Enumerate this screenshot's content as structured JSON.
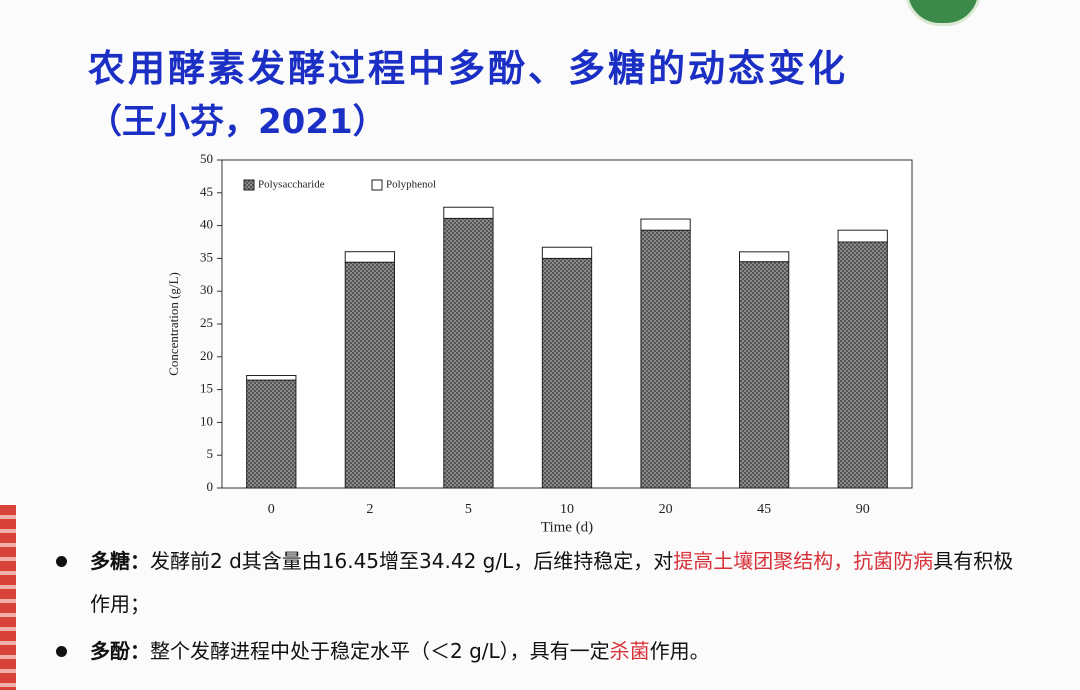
{
  "title": "农用酵素发酵过程中多酚、多糖的动态变化",
  "subtitle": "（王小芬，2021）",
  "chart_data": {
    "type": "stacked_bar",
    "x_label": "Time (d)",
    "y_label": "Concentration (g/L)",
    "categories": [
      "0",
      "2",
      "5",
      "10",
      "20",
      "45",
      "90"
    ],
    "series": [
      {
        "name": "Polysaccharide",
        "color": "#6e6e6e",
        "values": [
          16.45,
          34.42,
          41.1,
          35.0,
          39.3,
          34.5,
          37.5
        ]
      },
      {
        "name": "Polyphenol",
        "color": "#ffffff",
        "values": [
          0.7,
          1.6,
          1.7,
          1.7,
          1.7,
          1.5,
          1.8
        ]
      }
    ],
    "ylim": [
      0,
      50
    ],
    "yticks": [
      0,
      5,
      10,
      15,
      20,
      25,
      30,
      35,
      40,
      45,
      50
    ],
    "legend": "top-left"
  },
  "bullets": [
    {
      "label": "多糖：",
      "parts": [
        {
          "text": "发酵前2 d其含量由16.45增至34.42 g/L，后维持稳定，对",
          "highlight": false
        },
        {
          "text": "提高土壤团聚结构，抗菌防病",
          "highlight": true
        },
        {
          "text": "具有积极作用；",
          "highlight": false
        }
      ]
    },
    {
      "label": "多酚：",
      "parts": [
        {
          "text": "整个发酵进程中处于稳定水平（＜2 g/L），具有一定",
          "highlight": false
        },
        {
          "text": "杀菌",
          "highlight": true
        },
        {
          "text": "作用。",
          "highlight": false
        }
      ]
    }
  ]
}
